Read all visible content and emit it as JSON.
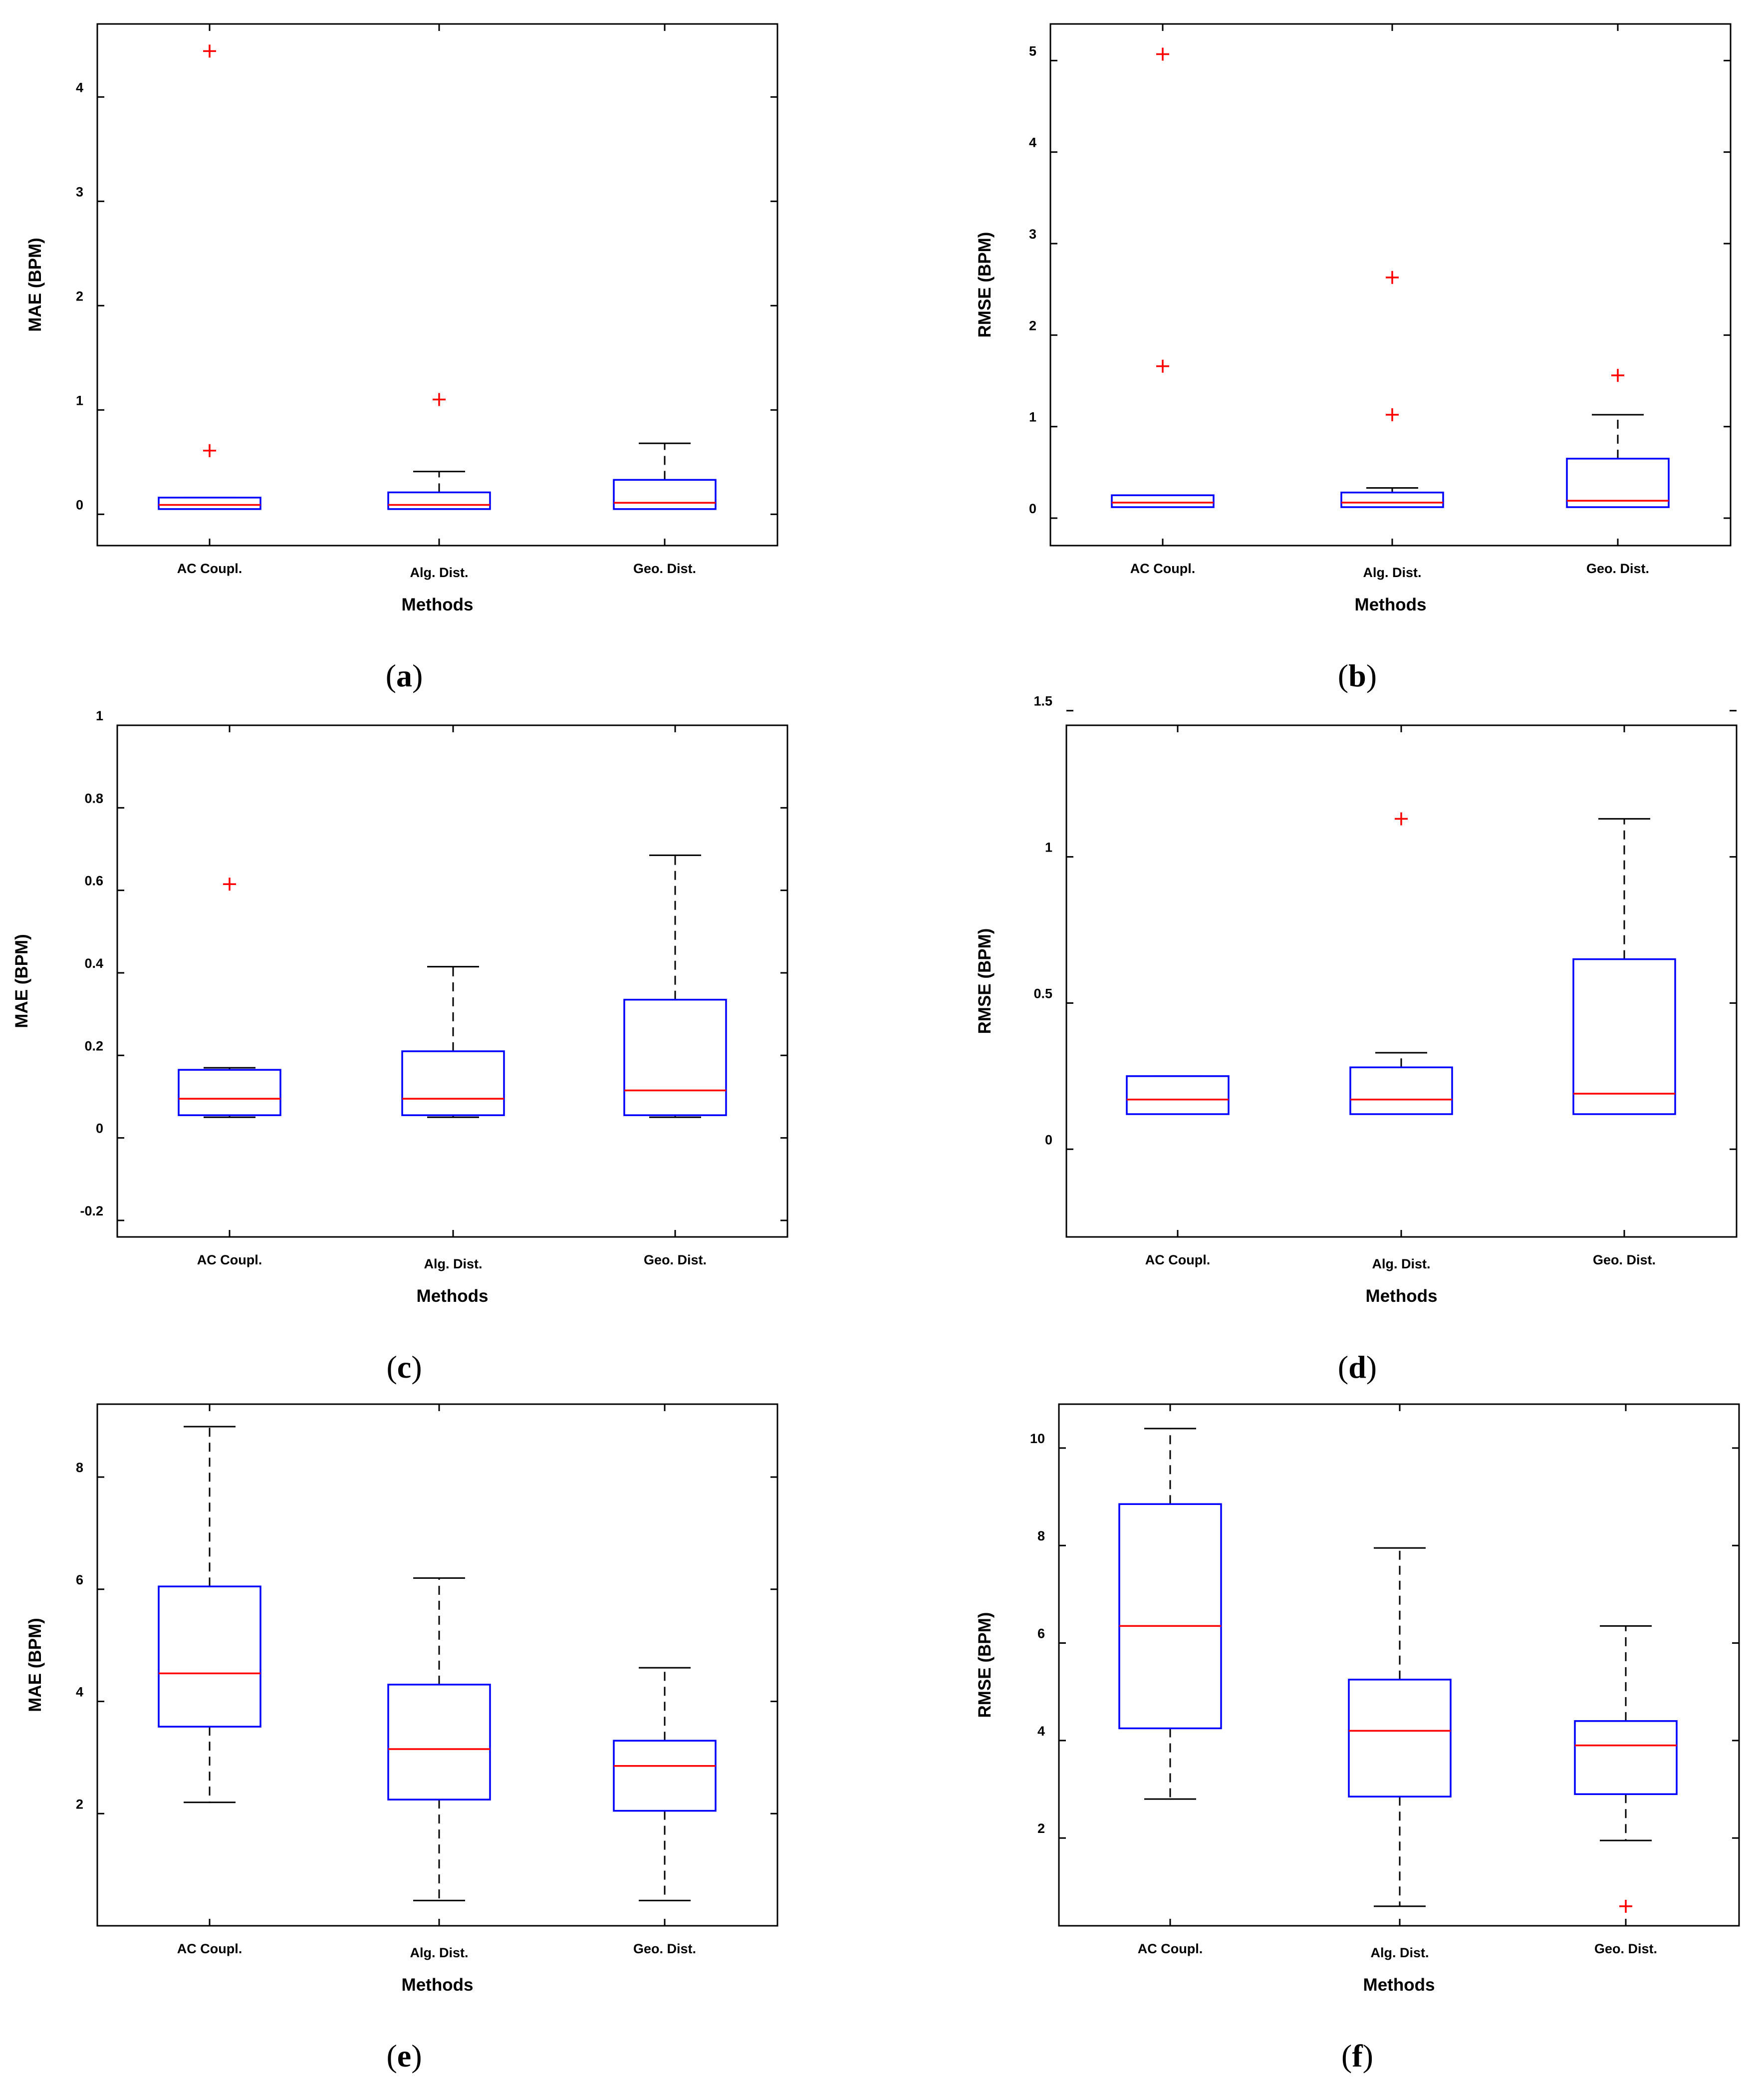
{
  "figure": {
    "colors": {
      "box": "#0000ff",
      "median": "#ff0000",
      "whisker": "#000000",
      "outlier": "#ff0000",
      "frame": "#000000"
    }
  },
  "chart_data": [
    {
      "panel": "a",
      "type": "boxplot",
      "xlabel": "Methods",
      "ylabel": "MAE (BPM)",
      "categories": [
        "AC Coupl.",
        "Alg. Dist.",
        "Geo. Dist."
      ],
      "ylim": [
        -0.3,
        4.7
      ],
      "yticks": [
        0,
        1,
        2,
        3,
        4
      ],
      "ytick_labels": [
        "0",
        "1",
        "2",
        "3",
        "4"
      ],
      "boxes": [
        {
          "whisker_low": 0.05,
          "q1": 0.05,
          "median": 0.09,
          "q3": 0.16,
          "whisker_high": 0.16,
          "outliers": [
            0.61,
            4.44
          ]
        },
        {
          "whisker_low": 0.05,
          "q1": 0.05,
          "median": 0.09,
          "q3": 0.21,
          "whisker_high": 0.41,
          "outliers": [
            1.1
          ]
        },
        {
          "whisker_low": 0.05,
          "q1": 0.05,
          "median": 0.11,
          "q3": 0.33,
          "whisker_high": 0.68,
          "outliers": []
        }
      ]
    },
    {
      "panel": "b",
      "type": "boxplot",
      "xlabel": "Methods",
      "ylabel": "RMSE (BPM)",
      "categories": [
        "AC Coupl.",
        "Alg. Dist.",
        "Geo. Dist."
      ],
      "ylim": [
        -0.3,
        5.4
      ],
      "yticks": [
        0,
        1,
        2,
        3,
        4,
        5
      ],
      "ytick_labels": [
        "0",
        "1",
        "2",
        "3",
        "4",
        "5"
      ],
      "boxes": [
        {
          "whisker_low": 0.12,
          "q1": 0.12,
          "median": 0.17,
          "q3": 0.25,
          "whisker_high": 0.25,
          "outliers": [
            1.66,
            5.07
          ]
        },
        {
          "whisker_low": 0.12,
          "q1": 0.12,
          "median": 0.17,
          "q3": 0.28,
          "whisker_high": 0.33,
          "outliers": [
            1.13,
            2.63
          ]
        },
        {
          "whisker_low": 0.12,
          "q1": 0.12,
          "median": 0.19,
          "q3": 0.65,
          "whisker_high": 1.13,
          "outliers": [
            1.56
          ]
        }
      ]
    },
    {
      "panel": "c",
      "type": "boxplot",
      "xlabel": "Methods",
      "ylabel": "MAE (BPM)",
      "categories": [
        "AC Coupl.",
        "Alg. Dist.",
        "Geo. Dist."
      ],
      "ylim": [
        -0.24,
        1.0
      ],
      "yticks": [
        -0.2,
        0,
        0.2,
        0.4,
        0.6,
        0.8,
        1
      ],
      "ytick_labels": [
        "-0.2",
        "0",
        "0.2",
        "0.4",
        "0.6",
        "0.8",
        "1"
      ],
      "boxes": [
        {
          "whisker_low": 0.05,
          "q1": 0.055,
          "median": 0.095,
          "q3": 0.165,
          "whisker_high": 0.17,
          "outliers": [
            0.615
          ]
        },
        {
          "whisker_low": 0.05,
          "q1": 0.055,
          "median": 0.095,
          "q3": 0.21,
          "whisker_high": 0.415,
          "outliers": []
        },
        {
          "whisker_low": 0.05,
          "q1": 0.055,
          "median": 0.115,
          "q3": 0.335,
          "whisker_high": 0.685,
          "outliers": []
        }
      ]
    },
    {
      "panel": "d",
      "type": "boxplot",
      "xlabel": "Methods",
      "ylabel": "RMSE (BPM)",
      "categories": [
        "AC Coupl.",
        "Alg. Dist.",
        "Geo. Dist."
      ],
      "ylim": [
        -0.3,
        1.45
      ],
      "yticks": [
        0,
        0.5,
        1,
        1.5
      ],
      "ytick_labels": [
        "0",
        "0.5",
        "1",
        "1.5"
      ],
      "boxes": [
        {
          "whisker_low": 0.12,
          "q1": 0.12,
          "median": 0.17,
          "q3": 0.25,
          "whisker_high": 0.25,
          "outliers": []
        },
        {
          "whisker_low": 0.12,
          "q1": 0.12,
          "median": 0.17,
          "q3": 0.28,
          "whisker_high": 0.33,
          "outliers": [
            1.13
          ]
        },
        {
          "whisker_low": 0.12,
          "q1": 0.12,
          "median": 0.19,
          "q3": 0.65,
          "whisker_high": 1.13,
          "outliers": []
        }
      ]
    },
    {
      "panel": "e",
      "type": "boxplot",
      "xlabel": "Methods",
      "ylabel": "MAE (BPM)",
      "categories": [
        "AC Coupl.",
        "Alg. Dist.",
        "Geo. Dist."
      ],
      "ylim": [
        0,
        9.3
      ],
      "yticks": [
        2,
        4,
        6,
        8
      ],
      "ytick_labels": [
        "2",
        "4",
        "6",
        "8"
      ],
      "boxes": [
        {
          "whisker_low": 2.2,
          "q1": 3.55,
          "median": 4.5,
          "q3": 6.05,
          "whisker_high": 8.9,
          "outliers": []
        },
        {
          "whisker_low": 0.45,
          "q1": 2.25,
          "median": 3.15,
          "q3": 4.3,
          "whisker_high": 6.2,
          "outliers": []
        },
        {
          "whisker_low": 0.45,
          "q1": 2.05,
          "median": 2.85,
          "q3": 3.3,
          "whisker_high": 4.6,
          "outliers": []
        }
      ]
    },
    {
      "panel": "f",
      "type": "boxplot",
      "xlabel": "Methods",
      "ylabel": "RMSE (BPM)",
      "categories": [
        "AC Coupl.",
        "Alg. Dist.",
        "Geo. Dist."
      ],
      "ylim": [
        0.2,
        10.9
      ],
      "yticks": [
        2,
        4,
        6,
        8,
        10
      ],
      "ytick_labels": [
        "2",
        "4",
        "6",
        "8",
        "10"
      ],
      "boxes": [
        {
          "whisker_low": 2.8,
          "q1": 4.25,
          "median": 6.35,
          "q3": 8.85,
          "whisker_high": 10.4,
          "outliers": []
        },
        {
          "whisker_low": 0.6,
          "q1": 2.85,
          "median": 4.2,
          "q3": 5.25,
          "whisker_high": 7.95,
          "outliers": []
        },
        {
          "whisker_low": 1.95,
          "q1": 2.9,
          "median": 3.9,
          "q3": 4.4,
          "whisker_high": 6.35,
          "outliers": [
            0.6
          ]
        }
      ]
    }
  ]
}
